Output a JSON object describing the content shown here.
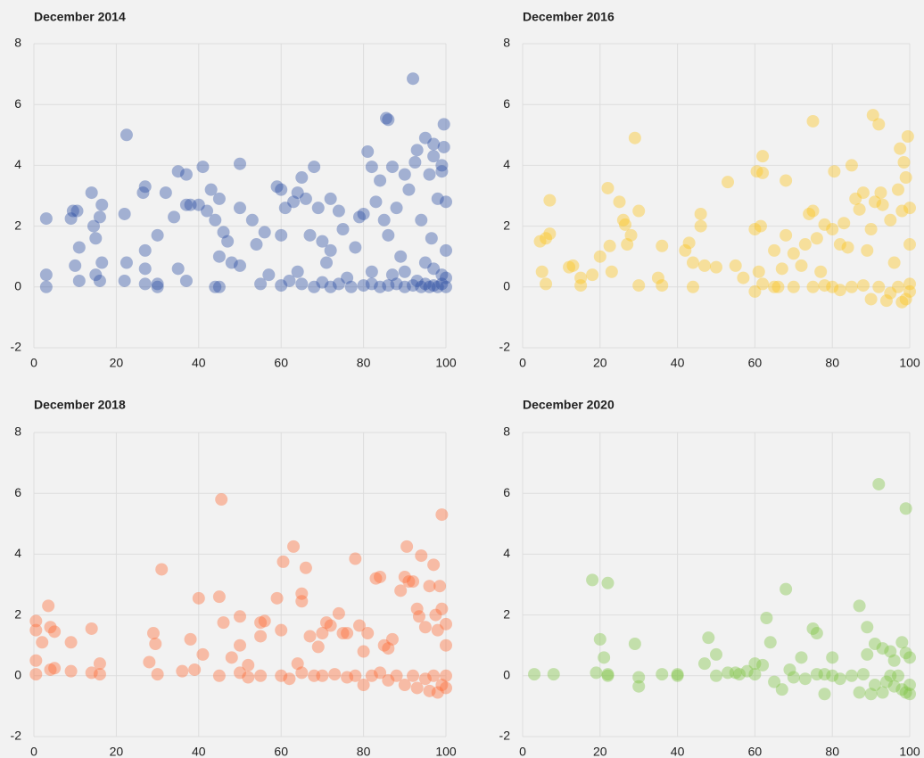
{
  "chart_data": [
    {
      "type": "scatter",
      "title": "December 2014",
      "color": "#2a4da3",
      "xlim": [
        0,
        100
      ],
      "ylim": [
        -2,
        8
      ],
      "xticks": [
        0,
        20,
        40,
        60,
        80,
        100
      ],
      "yticks": [
        -2,
        0,
        2,
        4,
        6,
        8
      ],
      "grid": true,
      "x": [
        3,
        3,
        3,
        9,
        9.5,
        10,
        10.5,
        11,
        11,
        14,
        14.5,
        15,
        15,
        16,
        16.5,
        16.5,
        16,
        22,
        22.5,
        22.5,
        22,
        26.5,
        27,
        27,
        27,
        27,
        30,
        30,
        32,
        34,
        35,
        35,
        37,
        37,
        37,
        38,
        40,
        41,
        42,
        43,
        44,
        44,
        45,
        45,
        46,
        47,
        48,
        50,
        50,
        50,
        53,
        54,
        56,
        57,
        59,
        60,
        60,
        61,
        62,
        63,
        64,
        64,
        65,
        66,
        67,
        68,
        69,
        70,
        71,
        72,
        72,
        74,
        75,
        76,
        78,
        79,
        80,
        81,
        82,
        82,
        83,
        84,
        85,
        85.5,
        86,
        86,
        87,
        88,
        89,
        90,
        91,
        92,
        92.5,
        93,
        94,
        95,
        96,
        96.5,
        97,
        97,
        98,
        99,
        99,
        99.5,
        99.5,
        100,
        100,
        30,
        45,
        55,
        60,
        65,
        68,
        70,
        72,
        74,
        77,
        80,
        82,
        84,
        86,
        88,
        90,
        92,
        93,
        94,
        95,
        96,
        97,
        98,
        99,
        100,
        100,
        99,
        97,
        95,
        90,
        87
      ],
      "values": [
        2.25,
        0.4,
        0,
        2.25,
        2.5,
        0.7,
        2.5,
        1.3,
        0.2,
        3.1,
        2,
        1.6,
        0.4,
        2.3,
        2.7,
        0.8,
        0.2,
        2.4,
        5,
        0.8,
        0.2,
        3.1,
        3.3,
        1.2,
        0.6,
        0.1,
        1.7,
        0.1,
        3.1,
        2.3,
        3.8,
        0.6,
        3.7,
        2.7,
        0.2,
        2.7,
        2.7,
        3.95,
        2.5,
        3.2,
        2.2,
        0,
        1,
        2.9,
        1.8,
        1.5,
        0.8,
        4.05,
        2.6,
        0.7,
        2.2,
        1.4,
        1.8,
        0.4,
        3.3,
        3.2,
        1.7,
        2.6,
        0.2,
        2.8,
        3.1,
        0.5,
        3.6,
        2.9,
        1.7,
        3.95,
        2.6,
        1.5,
        0.8,
        2.9,
        1.2,
        2.5,
        1.9,
        0.3,
        1.3,
        2.3,
        2.4,
        4.45,
        3.95,
        0.5,
        2.8,
        3.5,
        2.2,
        5.55,
        5.5,
        1.7,
        3.95,
        2.6,
        1,
        3.7,
        3.2,
        6.85,
        4.1,
        4.5,
        2.2,
        4.9,
        3.7,
        1.6,
        4.7,
        4.3,
        2.9,
        4,
        3.8,
        5.35,
        4.6,
        2.8,
        1.2,
        0,
        0,
        0.1,
        0.05,
        0.1,
        0,
        0.15,
        0,
        0.1,
        0,
        0.05,
        0.1,
        0,
        0.05,
        0.1,
        0,
        0.05,
        0.2,
        0,
        0.1,
        0,
        0.05,
        0,
        0.1,
        0,
        0.3,
        0.4,
        0.6,
        0.8,
        0.5,
        0.4
      ]
    },
    {
      "type": "scatter",
      "title": "December 2016",
      "color": "#fcc419",
      "xlim": [
        0,
        100
      ],
      "ylim": [
        -2,
        8
      ],
      "xticks": [
        0,
        20,
        40,
        60,
        80,
        100
      ],
      "yticks": [
        -2,
        0,
        2,
        4,
        6,
        8
      ],
      "grid": true,
      "x": [
        4.5,
        5,
        6,
        7,
        7,
        6,
        12,
        13,
        15,
        15,
        18,
        20,
        22,
        22.5,
        23,
        25,
        26,
        26.5,
        27,
        28,
        29,
        30,
        30,
        35,
        36,
        36,
        42,
        43,
        44,
        44,
        46,
        46,
        47,
        50,
        53,
        55,
        57,
        60,
        60.5,
        61,
        61.5,
        62,
        62,
        62,
        65,
        66,
        67,
        68,
        68,
        70,
        72,
        73,
        74,
        75,
        75,
        76,
        77,
        78,
        80,
        80.5,
        82,
        83,
        84,
        85,
        86,
        87,
        88,
        89,
        90,
        90.5,
        91,
        92,
        92.5,
        93,
        95,
        96,
        97,
        97.5,
        98,
        98.5,
        99,
        99.5,
        100,
        100,
        60,
        65,
        70,
        75,
        78,
        80,
        82,
        85,
        88,
        90,
        92,
        94,
        95,
        97,
        98,
        99,
        100,
        100
      ],
      "values": [
        1.5,
        0.5,
        1.6,
        2.85,
        1.75,
        0.1,
        0.65,
        0.7,
        0.3,
        0.05,
        0.4,
        1,
        3.25,
        1.35,
        0.5,
        2.8,
        2.2,
        2.05,
        1.4,
        1.7,
        4.9,
        2.5,
        0.05,
        0.3,
        1.35,
        0.05,
        1.2,
        1.45,
        0.8,
        0,
        2.4,
        2,
        0.7,
        0.65,
        3.45,
        0.7,
        0.3,
        1.9,
        3.8,
        0.5,
        2,
        3.75,
        4.3,
        0.1,
        1.2,
        0,
        0.6,
        3.5,
        1.7,
        1.1,
        0.7,
        1.4,
        2.4,
        5.45,
        2.5,
        1.6,
        0.5,
        2.05,
        1.9,
        3.8,
        1.4,
        2.1,
        1.3,
        4,
        2.9,
        2.55,
        3.1,
        1.2,
        1.9,
        5.65,
        2.8,
        5.35,
        3.1,
        2.7,
        2.2,
        0.8,
        3.2,
        4.55,
        2.5,
        4.1,
        3.6,
        4.95,
        2.6,
        1.4,
        -0.15,
        0,
        0,
        0,
        0.05,
        0,
        -0.1,
        0,
        0.05,
        -0.4,
        0,
        -0.45,
        -0.2,
        0,
        -0.5,
        -0.4,
        -0.15,
        0.1
      ]
    },
    {
      "type": "scatter",
      "title": "December 2018",
      "color": "#ff6a33",
      "xlim": [
        0,
        100
      ],
      "ylim": [
        -2,
        8
      ],
      "xticks": [
        0,
        20,
        40,
        60,
        80,
        100
      ],
      "yticks": [
        -2,
        0,
        2,
        4,
        6,
        8
      ],
      "grid": true,
      "x": [
        0.5,
        0.5,
        0.5,
        0.5,
        2,
        3.5,
        4,
        4,
        5,
        5,
        9,
        9,
        14,
        14,
        16,
        16,
        28,
        29,
        29.5,
        30,
        31,
        36,
        38,
        39,
        40,
        41,
        45,
        45.5,
        46,
        48,
        50,
        50,
        52,
        55,
        55,
        56,
        59,
        60,
        60.5,
        63,
        64,
        65,
        65,
        66,
        67,
        69,
        70,
        71,
        72,
        74,
        75,
        76,
        78,
        79,
        80,
        81,
        83,
        84,
        85,
        86,
        87,
        89,
        90,
        90.5,
        91,
        92,
        93,
        93.5,
        94,
        95,
        96,
        97,
        97.5,
        98,
        98.5,
        99,
        99,
        100,
        100,
        45,
        50,
        52,
        55,
        60,
        62,
        65,
        68,
        70,
        73,
        76,
        78,
        80,
        82,
        84,
        86,
        88,
        90,
        92,
        93,
        95,
        96,
        97,
        98,
        99,
        100,
        100
      ],
      "values": [
        1.8,
        1.5,
        0.5,
        0.05,
        1.1,
        2.3,
        1.6,
        0.2,
        1.45,
        0.25,
        1.1,
        0.15,
        1.55,
        0.1,
        0.4,
        0.05,
        0.45,
        1.4,
        1.05,
        0.05,
        3.5,
        0.15,
        1.2,
        0.2,
        2.55,
        0.7,
        2.6,
        5.8,
        1.75,
        0.6,
        1.95,
        1,
        0.35,
        1.75,
        1.3,
        1.8,
        2.55,
        1.5,
        3.75,
        4.25,
        0.4,
        2.7,
        2.45,
        3.55,
        1.3,
        0.95,
        1.4,
        1.75,
        1.65,
        2.05,
        1.4,
        1.4,
        3.85,
        1.65,
        0.8,
        1.4,
        3.2,
        3.25,
        1,
        0.9,
        1.2,
        2.8,
        3.25,
        4.25,
        3.1,
        3.1,
        2.2,
        1.95,
        3.95,
        1.6,
        2.95,
        3.65,
        2,
        1.5,
        2.95,
        5.3,
        2.2,
        1.7,
        1,
        0,
        0.1,
        -0.05,
        0,
        0,
        -0.1,
        0.1,
        0,
        0,
        0.05,
        -0.05,
        0,
        -0.3,
        0,
        0.1,
        -0.15,
        0,
        -0.3,
        0,
        -0.4,
        -0.1,
        -0.5,
        0,
        -0.55,
        -0.3,
        0,
        -0.4
      ]
    },
    {
      "type": "scatter",
      "title": "December 2020",
      "color": "#7cc242",
      "xlim": [
        0,
        100
      ],
      "ylim": [
        -2,
        8
      ],
      "xticks": [
        0,
        20,
        40,
        60,
        80,
        100
      ],
      "yticks": [
        -2,
        0,
        2,
        4,
        6,
        8
      ],
      "grid": true,
      "x": [
        3,
        8,
        18,
        19,
        20,
        21,
        22,
        22,
        29,
        36,
        40,
        47,
        48,
        50,
        55,
        58,
        60,
        62,
        63,
        64,
        68,
        69,
        72,
        75,
        76,
        78,
        80,
        87,
        89,
        89,
        91,
        92,
        93,
        95,
        96,
        98,
        99,
        99,
        100,
        22,
        30,
        30,
        40,
        50,
        53,
        56,
        60,
        65,
        67,
        70,
        73,
        76,
        78,
        80,
        82,
        85,
        87,
        88,
        90,
        91,
        93,
        94,
        95,
        96,
        97,
        98,
        99,
        100,
        100
      ],
      "values": [
        0.05,
        0.05,
        3.15,
        0.1,
        1.2,
        0.6,
        3.05,
        0.05,
        1.05,
        0.05,
        0.05,
        0.4,
        1.25,
        0.7,
        0.1,
        0.15,
        0.4,
        0.35,
        1.9,
        1.1,
        2.85,
        0.2,
        0.6,
        1.55,
        1.4,
        0.05,
        0.6,
        2.3,
        1.6,
        0.7,
        1.05,
        6.3,
        0.9,
        0.8,
        0.5,
        1.1,
        5.5,
        0.75,
        0.6,
        0,
        -0.05,
        -0.35,
        0,
        0,
        0.1,
        0.05,
        0.05,
        -0.2,
        -0.45,
        -0.05,
        -0.1,
        0.05,
        -0.6,
        0,
        -0.1,
        0,
        -0.55,
        0.05,
        -0.6,
        -0.3,
        -0.55,
        -0.2,
        0,
        -0.35,
        0,
        -0.45,
        -0.55,
        -0.6,
        -0.3
      ]
    }
  ]
}
